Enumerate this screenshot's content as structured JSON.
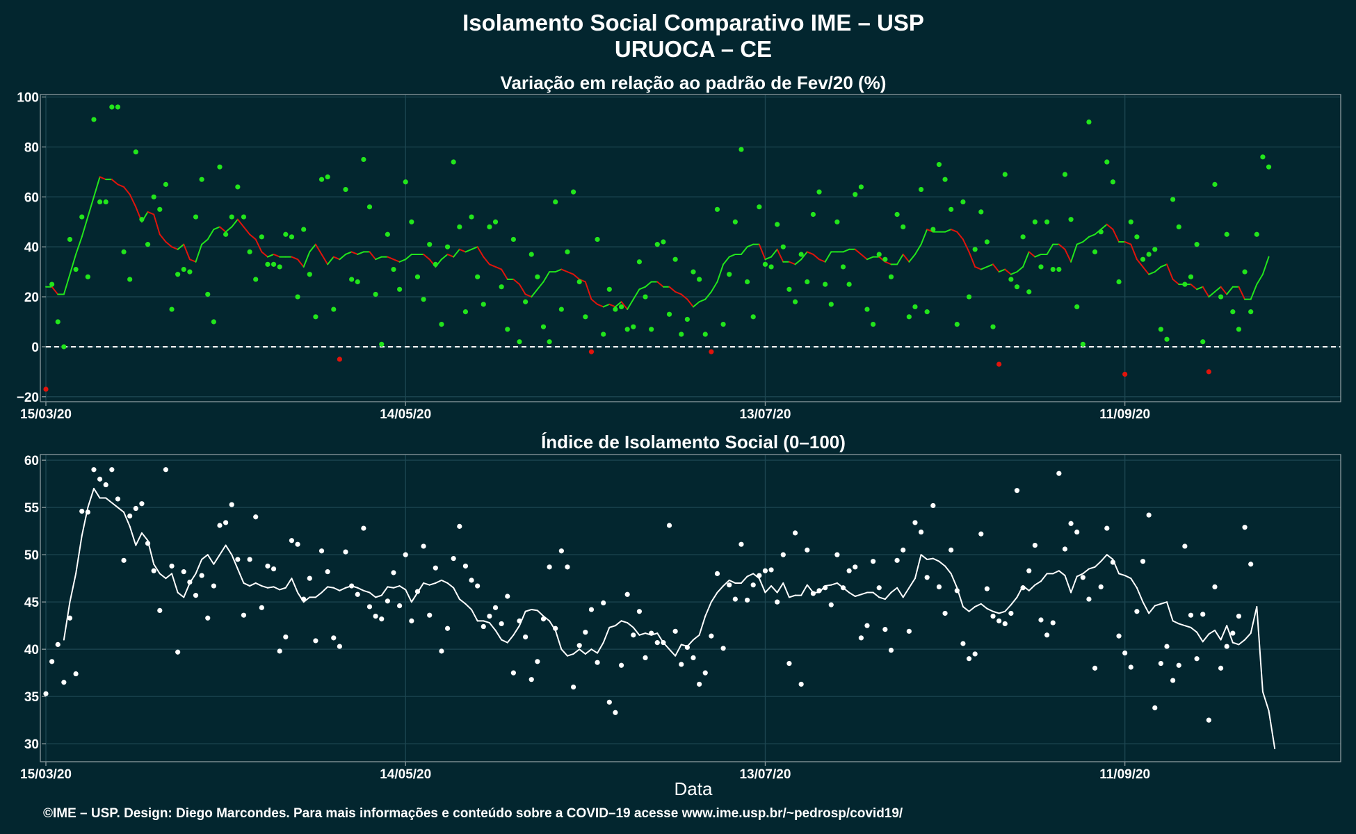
{
  "title": "Isolamento Social Comparativo IME – USP",
  "subtitle": "URUOCA – CE",
  "xlabel": "Data",
  "footer": "©IME – USP. Design: Diego Marcondes. Para mais informações e conteúdo sobre a COVID–19 acesse www.ime.usp.br/~pedrosp/covid19/",
  "colors": {
    "background": "#03262f",
    "positive": "#22e51c",
    "negative": "#e0140c",
    "index": "#ffffff"
  },
  "chart_data": [
    {
      "type": "scatter",
      "title": "Variação em relação ao padrão de Fev/20 (%)",
      "x_start": "2020-03-15",
      "x_end": "2020-10-17",
      "x_ticks": [
        "15/03/20",
        "14/05/20",
        "13/07/20",
        "11/09/20"
      ],
      "y_ticks": [
        100,
        80,
        60,
        40,
        20,
        0,
        -20
      ],
      "ylim": [
        -22,
        101
      ],
      "reference_line": 0,
      "grid": true,
      "series": [
        {
          "values": [
            -17,
            25,
            10,
            0,
            43,
            31,
            52,
            28,
            91,
            58,
            58,
            96,
            96,
            38,
            27,
            78,
            51,
            41,
            60,
            55,
            65,
            15,
            29,
            31,
            30,
            52,
            67,
            21,
            10,
            72,
            45,
            52,
            64,
            52,
            38,
            27,
            44,
            33,
            33,
            32,
            45,
            44,
            20,
            47,
            29,
            12,
            67,
            68,
            15,
            -5,
            63,
            27,
            26,
            75,
            56,
            21,
            1,
            45,
            31,
            23,
            66,
            50,
            28,
            19,
            41,
            33,
            9,
            40,
            74,
            48,
            14,
            52,
            28,
            17,
            48,
            50,
            24,
            7,
            43,
            2,
            18,
            37,
            28,
            8,
            2,
            58,
            15,
            38,
            62,
            26,
            12,
            -2,
            43,
            5,
            23,
            15,
            16,
            7,
            8,
            34,
            20,
            7,
            41,
            42,
            13,
            35,
            5,
            11,
            30,
            27,
            5,
            -2,
            55,
            9,
            29,
            50,
            79,
            26,
            12,
            56,
            33,
            32,
            49,
            40,
            23,
            18,
            37,
            26,
            53,
            62,
            25,
            17,
            50,
            32,
            25,
            61,
            64,
            15,
            9,
            37,
            35,
            28,
            53,
            48,
            12,
            16,
            63,
            14,
            47,
            73,
            67,
            55,
            9,
            58,
            20,
            39,
            54,
            42,
            8,
            -7,
            69,
            27,
            24,
            44,
            22,
            50,
            32,
            50,
            31,
            31,
            69,
            51,
            16,
            1,
            90,
            38,
            46,
            74,
            66,
            26,
            -11,
            50,
            44,
            35,
            37,
            39,
            7,
            3,
            59,
            48,
            25,
            28,
            41,
            2,
            -10,
            65,
            20,
            45,
            14,
            7,
            30,
            14,
            45,
            76,
            72
          ]
        },
        {
          "values": [
            24,
            24,
            21,
            21,
            29,
            37,
            44,
            52,
            60,
            68,
            67,
            67,
            65,
            64,
            61,
            56,
            50,
            54,
            53,
            45,
            42,
            40,
            39,
            41,
            35,
            34,
            41,
            43,
            47,
            48,
            46,
            48,
            51,
            48,
            45,
            43,
            38,
            36,
            37,
            36,
            36,
            36,
            35,
            32,
            38,
            41,
            37,
            33,
            36,
            35,
            37,
            38,
            37,
            38,
            38,
            35,
            36,
            36,
            35,
            34,
            35,
            37,
            37,
            37,
            35,
            32,
            35,
            37,
            36,
            39,
            38,
            39,
            40,
            36,
            33,
            32,
            31,
            27,
            27,
            25,
            21,
            20,
            23,
            26,
            30,
            30,
            31,
            30,
            29,
            27,
            26,
            19,
            17,
            16,
            17,
            16,
            18,
            15,
            19,
            23,
            24,
            26,
            26,
            24,
            24,
            22,
            21,
            19,
            16,
            18,
            19,
            22,
            26,
            33,
            36,
            37,
            37,
            40,
            41,
            41,
            35,
            36,
            39,
            34,
            34,
            33,
            35,
            38,
            37,
            35,
            34,
            38,
            38,
            38,
            39,
            39,
            37,
            35,
            36,
            36,
            34,
            33,
            33,
            37,
            34,
            37,
            41,
            47,
            46,
            46,
            46,
            47,
            46,
            43,
            38,
            32,
            31,
            32,
            33,
            30,
            31,
            29,
            30,
            32,
            38,
            36,
            37,
            37,
            41,
            41,
            39,
            34,
            41,
            42,
            44,
            45,
            47,
            49,
            47,
            42,
            42,
            41,
            35,
            32,
            29,
            30,
            32,
            33,
            27,
            25,
            25,
            25,
            23,
            24,
            20,
            22,
            24,
            21,
            24,
            24,
            19,
            19,
            25,
            29,
            36
          ]
        }
      ]
    },
    {
      "type": "scatter",
      "title": "Índice de Isolamento Social (0–100)",
      "x_start": "2020-03-15",
      "x_end": "2020-10-17",
      "x_ticks": [
        "15/03/20",
        "14/05/20",
        "13/07/20",
        "11/09/20"
      ],
      "y_ticks": [
        60,
        55,
        50,
        45,
        40,
        35,
        30
      ],
      "ylim": [
        28.1,
        60.6
      ],
      "grid": true,
      "series": [
        {
          "values": [
            35.3,
            38.7,
            40.5,
            36.5,
            43.3,
            37.4,
            54.6,
            54.5,
            59,
            58,
            57.4,
            59,
            55.9,
            49.4,
            54.1,
            54.9,
            55.4,
            51.2,
            48.3,
            44.1,
            59,
            48.8,
            39.7,
            48.2,
            47.1,
            45.7,
            47.8,
            43.3,
            46.7,
            53.1,
            53.4,
            55.3,
            49.5,
            43.6,
            49.5,
            54,
            44.4,
            48.8,
            48.5,
            39.8,
            41.3,
            51.5,
            51.1,
            45.3,
            47.5,
            40.9,
            50.4,
            48.2,
            41.2,
            40.3,
            50.3,
            46.7,
            45.8,
            52.8,
            44.5,
            43.5,
            43.2,
            45.1,
            48.1,
            44.6,
            50,
            43,
            46.1,
            50.9,
            43.6,
            48.6,
            39.8,
            42.2,
            49.6,
            53,
            48.8,
            47.3,
            46.7,
            42.4,
            43.5,
            44.4,
            42.7,
            45.6,
            37.5,
            43,
            41.3,
            36.8,
            38.7,
            43.2,
            48.7,
            42.2,
            50.4,
            48.7,
            36,
            40.4,
            41.8,
            44.2,
            38.6,
            44.9,
            34.4,
            33.3,
            38.3,
            45.8,
            41.5,
            44,
            39.1,
            41.7,
            40.7,
            40.7,
            53.1,
            41.9,
            38.4,
            40.2,
            39.1,
            36.3,
            37.5,
            41.4,
            48,
            40.1,
            46.8,
            45.3,
            51.1,
            45.2,
            46.8,
            47.8,
            48.3,
            48.4,
            45,
            50,
            38.5,
            52.3,
            36.3,
            50.5,
            45.9,
            46.2,
            46.5,
            44.7,
            50,
            46.5,
            48.3,
            48.7,
            41.2,
            42.5,
            49.3,
            46.5,
            42.1,
            39.9,
            49.4,
            50.5,
            41.9,
            53.4,
            52.4,
            47.6,
            55.2,
            46.6,
            43.8,
            50.5,
            46.2,
            40.6,
            39,
            39.5,
            52.2,
            46.4,
            43.5,
            43,
            42.7,
            43.8,
            56.8,
            46.5,
            48.3,
            51,
            43.1,
            41.5,
            42.8,
            58.6,
            50.6,
            53.3,
            52.4,
            47.6,
            45.3,
            38,
            46.6,
            52.8,
            49.2,
            41.4,
            39.6,
            38.1,
            44,
            49.3,
            54.2,
            33.8,
            38.5,
            40.3,
            36.7,
            38.3,
            50.9,
            43.6,
            39,
            43.7,
            32.5,
            46.6,
            38,
            40.3,
            41.7,
            43.5,
            52.9,
            49
          ]
        },
        {
          "values": [
            null,
            null,
            null,
            41,
            45,
            48,
            52,
            55,
            57,
            56,
            56,
            55.5,
            55,
            54.5,
            53,
            51,
            52.3,
            51.5,
            49,
            48,
            47.5,
            48,
            46,
            45.5,
            47,
            48,
            49.5,
            50,
            49,
            50,
            51,
            50,
            48.5,
            47,
            46.7,
            47,
            46.7,
            46.5,
            46.6,
            46.3,
            46.5,
            47.5,
            46,
            45,
            45.5,
            45.5,
            46,
            46.6,
            46.5,
            46.2,
            46.5,
            46.7,
            46.5,
            46.2,
            46,
            45.5,
            45.7,
            46.6,
            46.5,
            46.7,
            46.3,
            45,
            46,
            47,
            46.8,
            47,
            47.3,
            47,
            46.5,
            45.3,
            44.8,
            44.2,
            43,
            43,
            42.8,
            42,
            41,
            40.7,
            41.5,
            42.5,
            44,
            44.2,
            44.1,
            43.5,
            43,
            42,
            40,
            39.3,
            39.5,
            40,
            39.5,
            40,
            39.6,
            40.7,
            42.3,
            42.5,
            43,
            42.8,
            42.3,
            41.5,
            41.7,
            41.5,
            41.7,
            40.7,
            40,
            39.3,
            40.5,
            40.3,
            41,
            41.5,
            43.5,
            45,
            46,
            46.7,
            47.3,
            47,
            47,
            47.7,
            48,
            47.5,
            46,
            46.7,
            46,
            47,
            45.5,
            45.7,
            45.7,
            46.8,
            46,
            46,
            46.7,
            46.8,
            47,
            46.5,
            46,
            45.6,
            45.8,
            46,
            46,
            45.5,
            45.3,
            46,
            46.5,
            45.5,
            46.5,
            47.5,
            50,
            49.5,
            49.6,
            49.3,
            48.8,
            48,
            46.5,
            44.5,
            44,
            44.5,
            44.8,
            44.3,
            44,
            43.8,
            44,
            44.7,
            45.5,
            46.7,
            46.2,
            46.8,
            47.2,
            48,
            48,
            48.3,
            47.8,
            46,
            47.7,
            48,
            48.5,
            48.7,
            49.3,
            50,
            49.5,
            48,
            47.8,
            47.5,
            46.5,
            45,
            43.8,
            44.6,
            44.8,
            45,
            43,
            42.7,
            42.5,
            42.3,
            41.8,
            40.8,
            41.6,
            42,
            41,
            42.5,
            40.7,
            40.5,
            41,
            41.7,
            44.5,
            35.5,
            33.5,
            29.5
          ]
        }
      ]
    }
  ]
}
